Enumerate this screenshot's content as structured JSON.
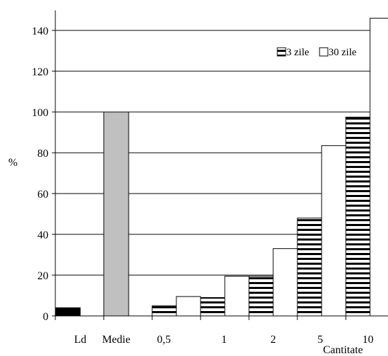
{
  "chart_data": {
    "type": "bar",
    "categories": [
      "Ld",
      "Medie",
      "0,5",
      "1",
      "2",
      "5",
      "10"
    ],
    "single_bars": [
      {
        "category": "Ld",
        "value": 4,
        "color": "#000000"
      },
      {
        "category": "Medie",
        "value": 100,
        "color": "#c0c0c0"
      }
    ],
    "series": [
      {
        "name": "3 zile",
        "pattern": "horizontal-stripes",
        "values": [
          null,
          null,
          5,
          9,
          19.5,
          48,
          97.5
        ]
      },
      {
        "name": "30 zile",
        "pattern": "white",
        "values": [
          null,
          null,
          9.5,
          19.5,
          33,
          83.5,
          146
        ]
      }
    ],
    "ylabel": "%",
    "xlabel": "Cantitate",
    "ylim": [
      0,
      147
    ],
    "yticks": [
      0,
      20,
      40,
      60,
      80,
      100,
      120,
      140
    ],
    "grid": true,
    "legend_position": "top-right"
  }
}
